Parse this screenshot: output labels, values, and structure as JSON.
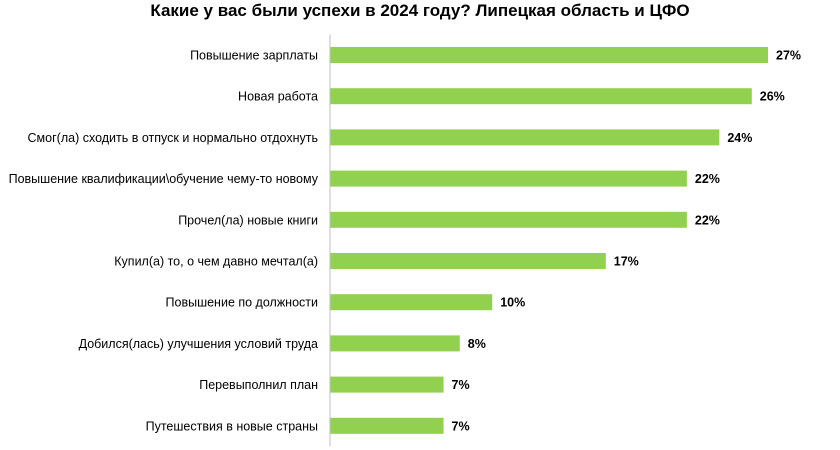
{
  "chart_data": {
    "type": "bar",
    "orientation": "horizontal",
    "title": "Какие у вас были успехи в 2024 году? Липецкая область и ЦФО",
    "categories": [
      "Повышение зарплаты",
      "Новая работа",
      "Смог(ла) сходить в отпуск и нормально отдохнуть",
      "Повышение квалификации\\обучение чему-то новому",
      "Прочел(ла) новые книги",
      "Купил(а) то, о чем давно мечтал(а)",
      "Повышение по должности",
      "Добился(лась) улучшения условий труда",
      "Перевыполнил план",
      "Путешествия в новые страны"
    ],
    "values": [
      27,
      26,
      24,
      22,
      22,
      17,
      10,
      8,
      7,
      7
    ],
    "value_labels": [
      "27%",
      "26%",
      "24%",
      "22%",
      "22%",
      "17%",
      "10%",
      "8%",
      "7%",
      "7%"
    ],
    "unit": "%",
    "xlim": [
      0,
      27
    ],
    "grid": false,
    "legend": "none",
    "bar_color": "#92d050"
  }
}
